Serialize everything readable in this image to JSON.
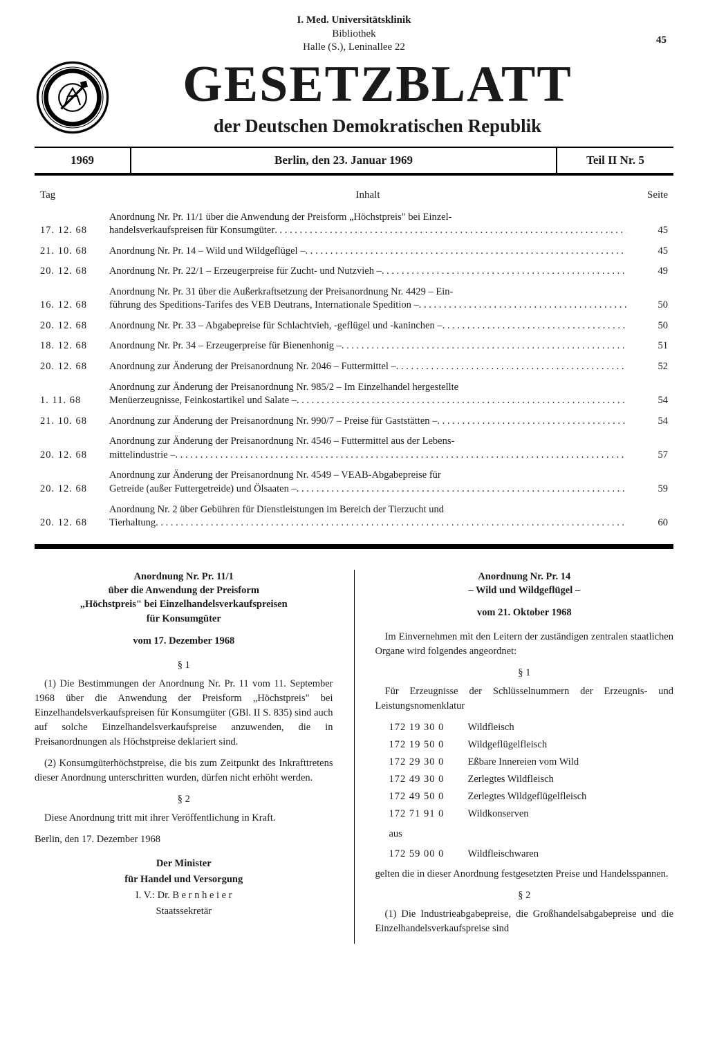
{
  "library_stamp": {
    "line1": "I. Med. Universitätsklinik",
    "line2": "Bibliothek",
    "line3": "Halle (S.), Leninallee 22"
  },
  "page_number_top": "45",
  "masthead": {
    "title": "GESETZBLATT",
    "subtitle": "der Deutschen Demokratischen Republik"
  },
  "dateline": {
    "year": "1969",
    "place_date": "Berlin, den 23. Januar 1969",
    "issue": "Teil II Nr. 5"
  },
  "toc": {
    "head_date": "Tag",
    "head_content": "Inhalt",
    "head_page": "Seite",
    "rows": [
      {
        "date": "17. 12. 68",
        "line1": "Anordnung Nr. Pr. 11/1 über die Anwendung der Preisform „Höchstpreis\" bei Einzel-",
        "line2": "handelsverkaufspreisen für Konsumgüter",
        "page": "45"
      },
      {
        "date": "21. 10. 68",
        "line1": "",
        "line2": "Anordnung Nr. Pr. 14 – Wild und Wildgeflügel –",
        "page": "45"
      },
      {
        "date": "20. 12. 68",
        "line1": "",
        "line2": "Anordnung Nr. Pr. 22/1 – Erzeugerpreise für Zucht- und Nutzvieh –",
        "page": "49"
      },
      {
        "date": "16. 12. 68",
        "line1": "Anordnung Nr. Pr. 31 über die Außerkraftsetzung der Preisanordnung Nr. 4429 – Ein-",
        "line2": "führung des Speditions-Tarifes des VEB Deutrans, Internationale Spedition –",
        "page": "50"
      },
      {
        "date": "20. 12. 68",
        "line1": "",
        "line2": "Anordnung Nr. Pr. 33 – Abgabepreise für Schlachtvieh, -geflügel und -kaninchen –",
        "page": "50"
      },
      {
        "date": "18. 12. 68",
        "line1": "",
        "line2": "Anordnung Nr. Pr. 34 – Erzeugerpreise für Bienenhonig –",
        "page": "51"
      },
      {
        "date": "20. 12. 68",
        "line1": "",
        "line2": "Anordnung zur Änderung der Preisanordnung Nr. 2046 – Futtermittel –",
        "page": "52"
      },
      {
        "date": "1. 11. 68",
        "line1": "Anordnung zur Änderung der Preisanordnung Nr. 985/2 – Im Einzelhandel hergestellte",
        "line2": "Menüerzeugnisse, Feinkostartikel und Salate –",
        "page": "54"
      },
      {
        "date": "21. 10. 68",
        "line1": "",
        "line2": "Anordnung zur Änderung der Preisanordnung Nr. 990/7 – Preise für Gaststätten –",
        "page": "54"
      },
      {
        "date": "20. 12. 68",
        "line1": "Anordnung zur Änderung der Preisanordnung Nr. 4546 – Futtermittel aus der Lebens-",
        "line2": "mittelindustrie –",
        "page": "57"
      },
      {
        "date": "20. 12. 68",
        "line1": "Anordnung zur Änderung der Preisanordnung Nr. 4549 – VEAB-Abgabepreise für",
        "line2": "Getreide (außer Futtergetreide) und Ölsaaten –",
        "page": "59"
      },
      {
        "date": "20. 12. 68",
        "line1": "Anordnung Nr. 2 über Gebühren für Dienstleistungen im Bereich der Tierzucht und",
        "line2": "Tierhaltung",
        "page": "60"
      }
    ]
  },
  "left": {
    "title_l1": "Anordnung Nr. Pr. 11/1",
    "title_l2": "über die Anwendung der Preisform",
    "title_l3": "„Höchstpreis\" bei Einzelhandelsverkaufspreisen",
    "title_l4": "für Konsumgüter",
    "date": "vom 17. Dezember 1968",
    "s1": "§ 1",
    "p1": "(1) Die Bestimmungen der Anordnung Nr. Pr. 11 vom 11. September 1968 über die Anwendung der Preisform „Höchstpreis\" bei Einzelhandelsverkaufspreisen für Konsumgüter (GBl. II S. 835) sind auch auf solche Einzelhandelsverkaufspreise anzuwenden, die in Preisanordnungen als Höchstpreise deklariert sind.",
    "p2": "(2) Konsumgüterhöchstpreise, die bis zum Zeitpunkt des Inkrafttretens dieser Anordnung unterschritten wurden, dürfen nicht erhöht werden.",
    "s2": "§ 2",
    "p3": "Diese Anordnung tritt mit ihrer Veröffentlichung in Kraft.",
    "place": "Berlin, den 17. Dezember 1968",
    "sig_l1": "Der Minister",
    "sig_l2": "für Handel und Versorgung",
    "sig_l3": "I. V.: Dr. B e r n h e i e r",
    "sig_l4": "Staatssekretär"
  },
  "right": {
    "title_l1": "Anordnung Nr. Pr. 14",
    "title_l2": "– Wild und Wildgeflügel –",
    "date": "vom 21. Oktober 1968",
    "intro": "Im Einvernehmen mit den Leitern der zuständigen zentralen staatlichen Organe wird folgendes angeordnet:",
    "s1": "§ 1",
    "p1": "Für Erzeugnisse der Schlüsselnummern der Erzeugnis- und Leistungsnomenklatur",
    "products": [
      {
        "code": "172 19 30 0",
        "name": "Wildfleisch"
      },
      {
        "code": "172 19 50 0",
        "name": "Wildgeflügelfleisch"
      },
      {
        "code": "172 29 30 0",
        "name": "Eßbare Innereien vom Wild"
      },
      {
        "code": "172 49 30 0",
        "name": "Zerlegtes Wildfleisch"
      },
      {
        "code": "172 49 50 0",
        "name": "Zerlegtes Wildgeflügelfleisch"
      },
      {
        "code": "172 71 91 0",
        "name": "Wildkonserven"
      }
    ],
    "aus": "aus",
    "product_last": {
      "code": "172 59 00 0",
      "name": "Wildfleischwaren"
    },
    "p2": "gelten die in dieser Anordnung festgesetzten Preise und Handelsspannen.",
    "s2": "§ 2",
    "p3": "(1) Die Industrieabgabepreise, die Großhandelsabgabepreise und die Einzelhandelsverkaufspreise sind"
  }
}
